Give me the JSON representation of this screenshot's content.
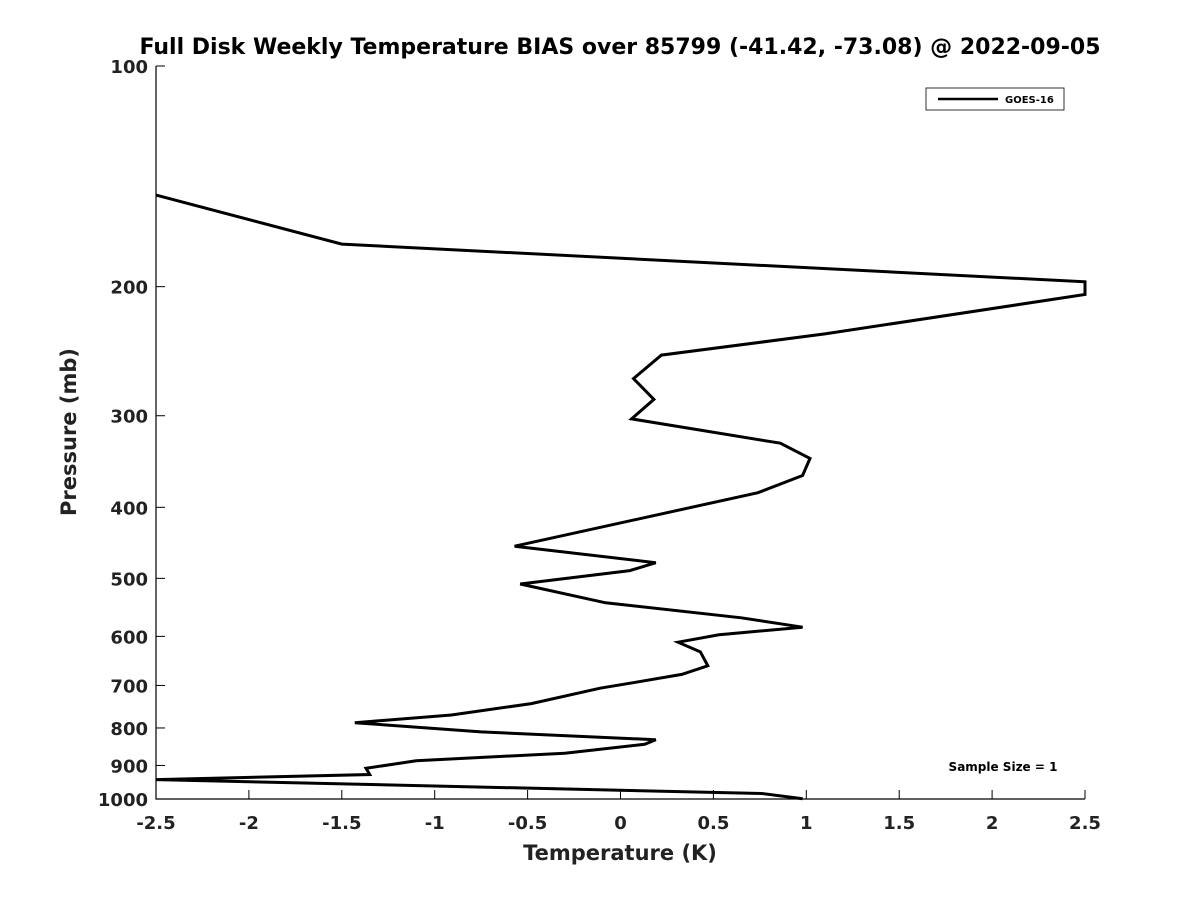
{
  "chart_data": {
    "type": "line",
    "title": "Full Disk Weekly Temperature BIAS over 85799 (-41.42, -73.08) @ 2022-09-05",
    "xlabel": "Temperature (K)",
    "ylabel": "Pressure (mb)",
    "xlim": [
      -2.5,
      2.5
    ],
    "ylim": [
      100,
      1000
    ],
    "yscale": "log",
    "yreversed": true,
    "xticks": [
      -2.5,
      -2,
      -1.5,
      -1,
      -0.5,
      0,
      0.5,
      1,
      1.5,
      2,
      2.5
    ],
    "xtick_labels": [
      "-2.5",
      "-2",
      "-1.5",
      "-1",
      "-0.5",
      "0",
      "0.5",
      "1",
      "1.5",
      "2",
      "2.5"
    ],
    "yticks": [
      100,
      200,
      300,
      400,
      500,
      600,
      700,
      800,
      900,
      1000
    ],
    "ytick_labels": [
      "100",
      "200",
      "300",
      "400",
      "500",
      "600",
      "700",
      "800",
      "900",
      "1000"
    ],
    "grid": false,
    "legend": {
      "position": "top-right",
      "entries": [
        "GOES-16"
      ]
    },
    "annotation": "Sample Size = 1",
    "series": [
      {
        "name": "GOES-16",
        "color": "#000000",
        "x": [
          -2.5,
          -1.5,
          2.5,
          2.5,
          1.1,
          0.22,
          0.07,
          0.18,
          0.06,
          0.86,
          1.02,
          0.98,
          0.74,
          -0.57,
          0.19,
          0.05,
          -0.54,
          -0.08,
          0.65,
          0.98,
          0.53,
          0.31,
          0.43,
          0.47,
          0.33,
          0.08,
          -0.11,
          -0.48,
          -0.91,
          -1.43,
          -0.75,
          0.19,
          0.13,
          -0.3,
          -1.1,
          -1.37,
          -1.35,
          -2.5,
          0.76,
          0.98
        ],
        "y": [
          150,
          175,
          197,
          205,
          232,
          248,
          267,
          285,
          303,
          327,
          343,
          362,
          382,
          452,
          476,
          488,
          509,
          540,
          566,
          583,
          597,
          611,
          630,
          658,
          676,
          693,
          706,
          741,
          768,
          787,
          810,
          830,
          842,
          866,
          887,
          908,
          926,
          941,
          983,
          999
        ]
      }
    ]
  }
}
